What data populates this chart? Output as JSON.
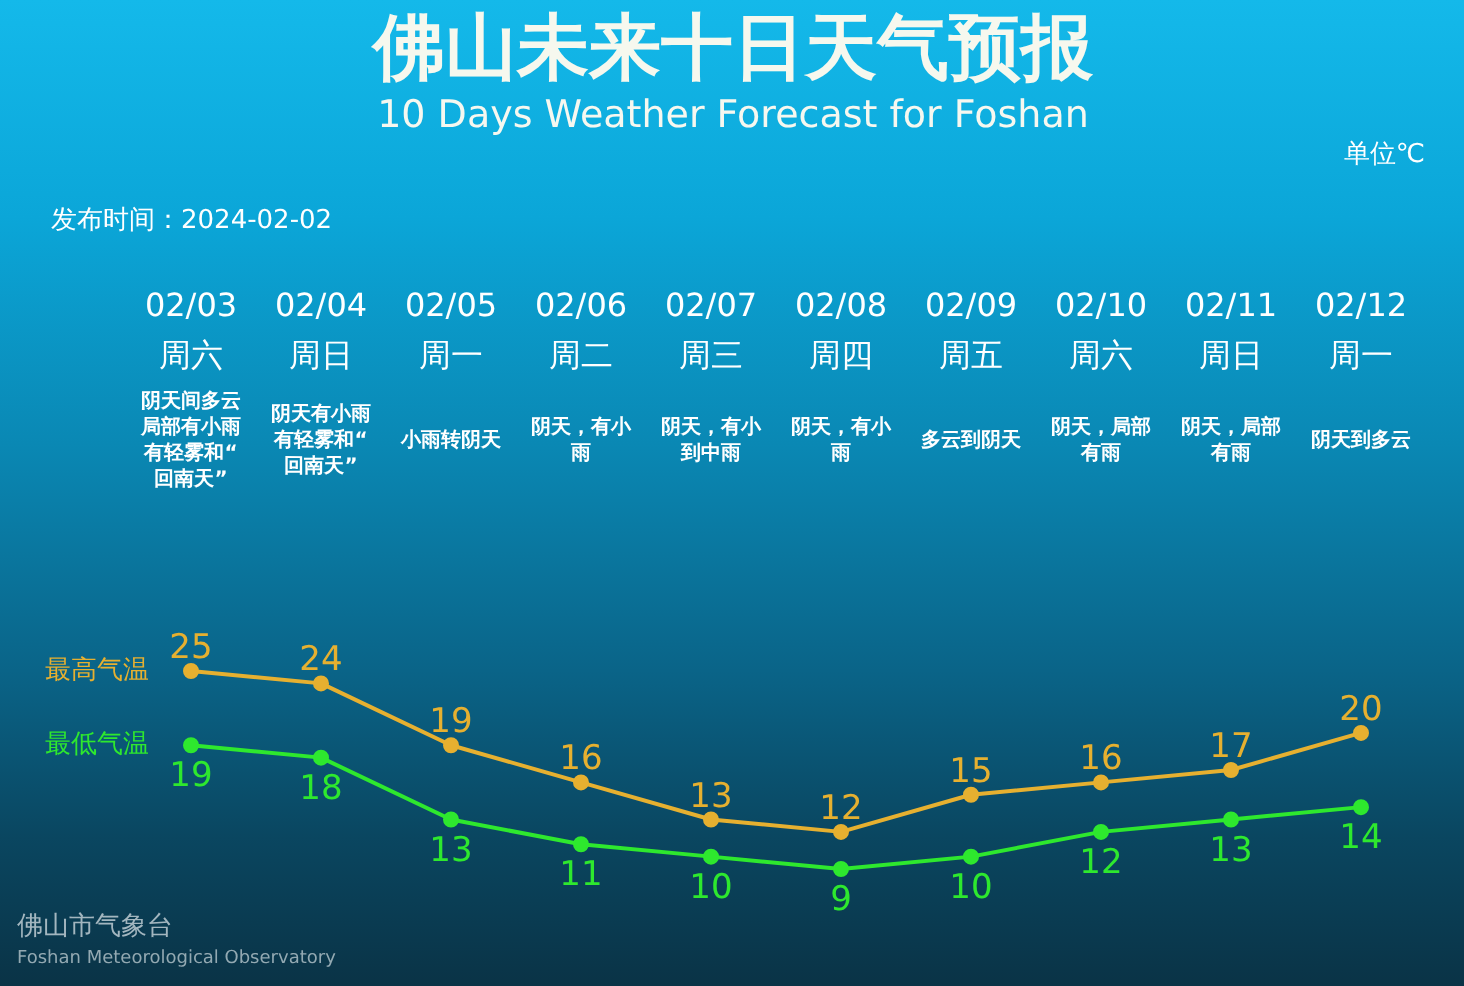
{
  "chart_data": {
    "type": "line",
    "title": "佛山未来十日天气预报",
    "subtitle": "10 Days Weather Forecast for Foshan",
    "categories": [
      "02/03\n周六",
      "02/04\n周日",
      "02/05\n周一",
      "02/06\n周二",
      "02/07\n周三",
      "02/08\n周四",
      "02/09\n周五",
      "02/10\n周六",
      "02/11\n周日",
      "02/12\n周一"
    ],
    "series": [
      {
        "name": "最高气温",
        "color": "#e6b030",
        "values": [
          25,
          24,
          19,
          16,
          13,
          12,
          15,
          16,
          17,
          20
        ]
      },
      {
        "name": "最低气温",
        "color": "#2ee82e",
        "values": [
          19,
          18,
          13,
          11,
          10,
          9,
          10,
          12,
          13,
          14
        ]
      }
    ],
    "data_labels": true,
    "marker": "circle",
    "line_style": "solid",
    "tick_labels": "x",
    "annotations": [
      "单位℃",
      "发布时间：2024-02-02",
      "阴天间多云局部有小雨有轻雾和“回南天”",
      "阴天有小雨有轻雾和“回南天”",
      "小雨转阴天",
      "阴天，有小雨",
      "阴天，有小到中雨",
      "阴天，有小雨",
      "多云到阴天",
      "阴天，局部有雨",
      "阴天，局部有雨",
      "阴天到多云",
      "佛山市气象台",
      "Foshan Meteorological Observatory"
    ]
  }
}
